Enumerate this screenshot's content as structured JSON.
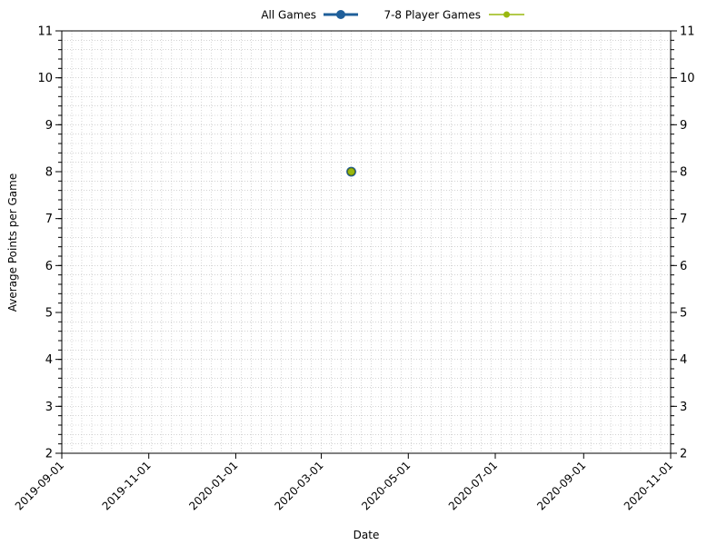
{
  "chart_data": {
    "type": "line",
    "xlabel": "Date",
    "ylabel": "Average Points per Game",
    "xlim": [
      "2019-09-01",
      "2020-11-01"
    ],
    "ylim": [
      2,
      11
    ],
    "x_ticks": [
      "2019-09-01",
      "2019-11-01",
      "2020-01-01",
      "2020-03-01",
      "2020-05-01",
      "2020-07-01",
      "2020-09-01",
      "2020-11-01"
    ],
    "y_ticks": [
      2,
      3,
      4,
      5,
      6,
      7,
      8,
      9,
      10,
      11
    ],
    "y_minor_step": 0.2,
    "grid": true,
    "legend_position": "top-center",
    "mirrored_right_axis": true,
    "series": [
      {
        "name": "All Games",
        "color": "#1f5f9a",
        "marker": "circle",
        "points": [
          {
            "x": "2020-03-22",
            "y": 8
          }
        ]
      },
      {
        "name": "7-8 Player Games",
        "color": "#99b80f",
        "marker": "circle",
        "points": [
          {
            "x": "2020-03-22",
            "y": 8
          }
        ]
      }
    ]
  }
}
